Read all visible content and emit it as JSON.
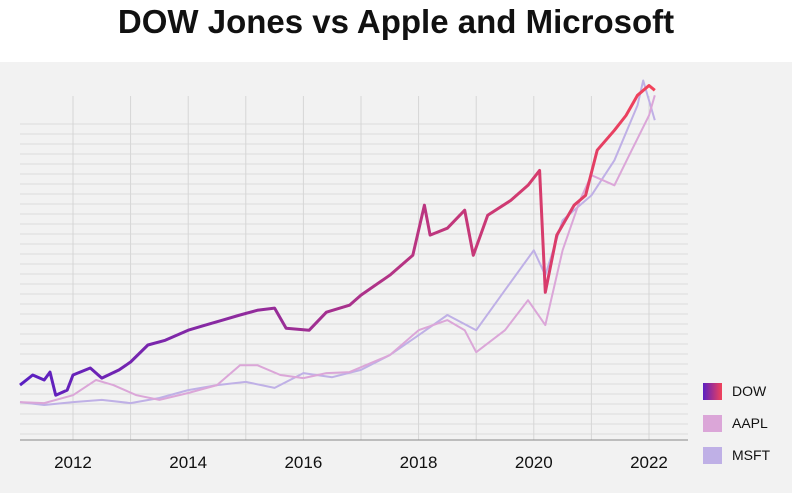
{
  "chart_data": {
    "type": "line",
    "title": "DOW Jones vs Apple and Microsoft",
    "xlabel": "",
    "ylabel": "",
    "xlim": [
      2011.08,
      2022.3
    ],
    "ylim": [
      0,
      115
    ],
    "x_ticks": [
      "2012",
      "2014",
      "2016",
      "2018",
      "2020",
      "2022"
    ],
    "grid": true,
    "legend_position": "bottom-right",
    "series": [
      {
        "name": "DOW",
        "color_start": "#5a1fc2",
        "color_end": "#f2425a",
        "x": [
          2011.08,
          2011.3,
          2011.5,
          2011.6,
          2011.7,
          2011.9,
          2012.0,
          2012.3,
          2012.5,
          2012.8,
          2013.0,
          2013.3,
          2013.6,
          2014.0,
          2014.3,
          2014.6,
          2014.9,
          2015.2,
          2015.5,
          2015.7,
          2016.1,
          2016.4,
          2016.8,
          2017.0,
          2017.5,
          2017.9,
          2018.1,
          2018.2,
          2018.5,
          2018.8,
          2018.95,
          2019.2,
          2019.6,
          2019.9,
          2020.1,
          2020.2,
          2020.4,
          2020.7,
          2020.9,
          2021.1,
          2021.4,
          2021.6,
          2021.8,
          2022.0,
          2022.1
        ],
        "y": [
          17.4,
          20.6,
          19.0,
          21.5,
          14.2,
          15.8,
          20.6,
          22.8,
          19.6,
          22.2,
          24.7,
          30.1,
          31.6,
          34.8,
          36.4,
          38.0,
          39.6,
          41.1,
          41.8,
          35.4,
          34.8,
          40.5,
          42.7,
          45.9,
          52.2,
          58.5,
          74.4,
          64.9,
          67.1,
          72.8,
          58.5,
          71.2,
          75.9,
          80.7,
          85.4,
          46.8,
          64.9,
          74.4,
          77.5,
          91.8,
          98.1,
          102.8,
          109.2,
          112.3,
          110.8
        ]
      },
      {
        "name": "AAPL",
        "color": "#dba6d8",
        "x": [
          2011.08,
          2011.5,
          2012.0,
          2012.4,
          2012.7,
          2013.1,
          2013.5,
          2014.0,
          2014.5,
          2014.9,
          2015.2,
          2015.6,
          2016.0,
          2016.4,
          2016.8,
          2017.5,
          2018.0,
          2018.5,
          2018.8,
          2019.0,
          2019.5,
          2019.9,
          2020.2,
          2020.5,
          2020.8,
          2021.0,
          2021.4,
          2021.7,
          2022.0,
          2022.1
        ],
        "y": [
          12.0,
          11.7,
          14.2,
          19.0,
          17.4,
          14.2,
          12.7,
          14.9,
          17.4,
          23.7,
          23.7,
          20.6,
          19.6,
          21.2,
          21.5,
          26.9,
          34.8,
          38.0,
          34.8,
          27.8,
          34.8,
          44.3,
          36.4,
          60.1,
          75.9,
          83.9,
          80.7,
          91.8,
          102.8,
          109.2
        ]
      },
      {
        "name": "MSFT",
        "color": "#bfb0e6",
        "x": [
          2011.08,
          2011.5,
          2012.0,
          2012.5,
          2013.0,
          2013.5,
          2014.0,
          2014.5,
          2015.0,
          2015.5,
          2016.0,
          2016.5,
          2017.0,
          2017.5,
          2018.0,
          2018.5,
          2019.0,
          2019.5,
          2020.0,
          2020.2,
          2020.5,
          2020.8,
          2021.0,
          2021.4,
          2021.8,
          2021.9,
          2022.1
        ],
        "y": [
          12.0,
          11.1,
          12.0,
          12.7,
          11.7,
          13.3,
          15.8,
          17.4,
          18.4,
          16.5,
          21.2,
          19.9,
          22.2,
          26.9,
          33.2,
          39.6,
          34.8,
          47.5,
          60.1,
          52.2,
          69.6,
          74.4,
          77.5,
          88.6,
          106.0,
          113.9,
          101.3
        ]
      }
    ]
  }
}
